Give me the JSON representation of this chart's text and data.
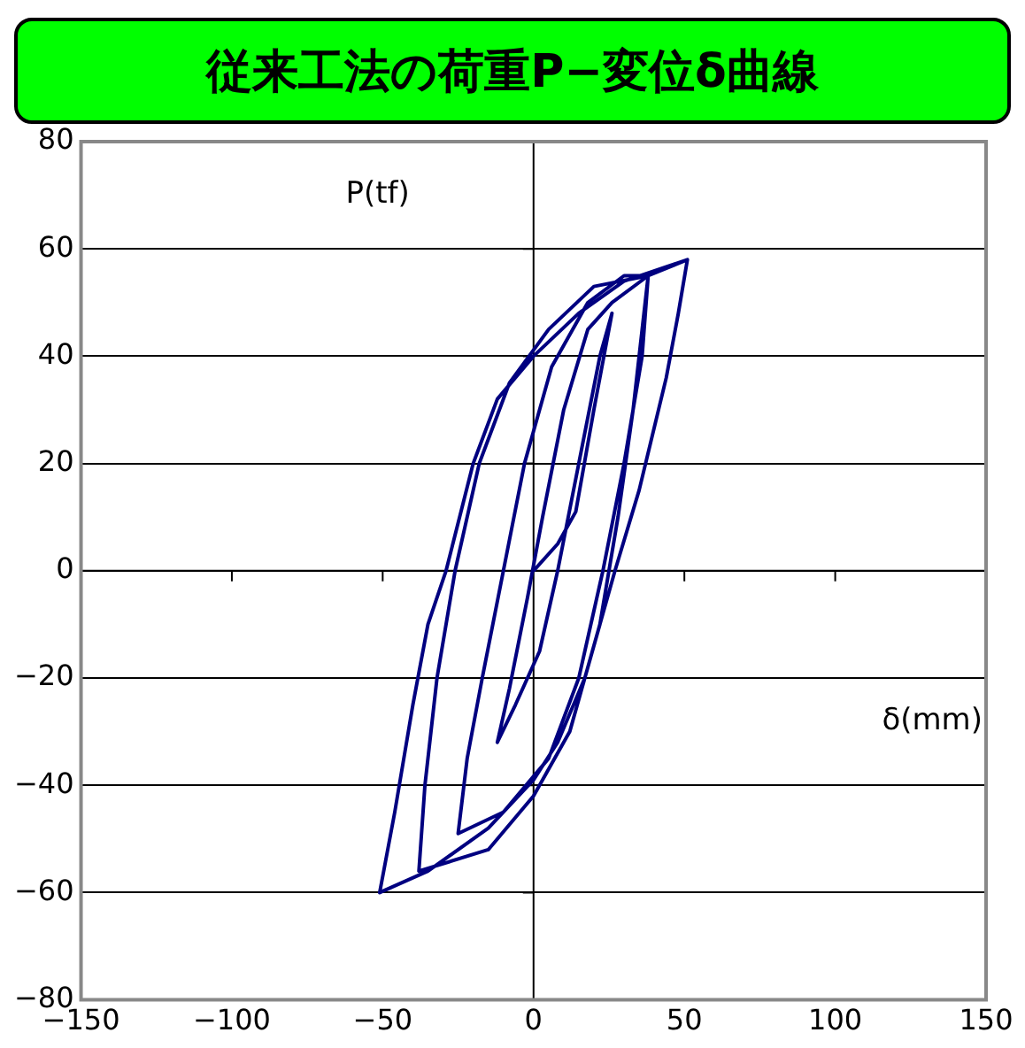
{
  "chart_data": {
    "type": "line",
    "title": "従来工法の荷重P−変位δ曲線",
    "xlabel": "δ(mm)",
    "ylabel": "P(tf)",
    "xlim": [
      -150,
      150
    ],
    "xticks": [
      -150,
      -100,
      -50,
      0,
      50,
      100,
      150
    ],
    "ylim": [
      -80,
      80
    ],
    "yticks": [
      -80,
      -60,
      -40,
      -20,
      0,
      20,
      40,
      60,
      80
    ],
    "grid": "y",
    "marker": "none",
    "line_style": "solid",
    "series": [
      {
        "color": "#000080",
        "x": [
          0,
          8,
          14,
          20,
          26,
          22,
          15,
          8,
          2,
          -6,
          -12,
          -8,
          -2,
          3,
          10,
          18,
          26,
          38,
          36,
          30,
          23,
          15,
          5,
          -10,
          -25,
          -22,
          -17,
          -10,
          -3,
          6,
          18,
          30,
          38,
          36,
          33,
          28,
          22,
          12,
          0,
          -15,
          -38,
          -36,
          -32,
          -26,
          -18,
          -8,
          5,
          20,
          38,
          51,
          48,
          44,
          35,
          27,
          17,
          8,
          0,
          -15,
          -35,
          -51,
          -46,
          -40,
          -35,
          -29,
          -20,
          -12,
          0,
          15,
          30,
          51
        ],
        "values": [
          0,
          5,
          11,
          30,
          48,
          40,
          20,
          0,
          -15,
          -25,
          -32,
          -22,
          -5,
          10,
          30,
          45,
          50,
          55,
          40,
          20,
          0,
          -20,
          -35,
          -45,
          -49,
          -35,
          -20,
          0,
          20,
          38,
          50,
          55,
          55,
          45,
          30,
          10,
          -10,
          -30,
          -42,
          -52,
          -56,
          -40,
          -20,
          0,
          20,
          35,
          45,
          53,
          55,
          58,
          48,
          36,
          15,
          0,
          -20,
          -32,
          -39,
          -48,
          -56,
          -60,
          -45,
          -25,
          -10,
          0,
          20,
          32,
          40,
          48,
          54,
          58
        ]
      }
    ]
  }
}
